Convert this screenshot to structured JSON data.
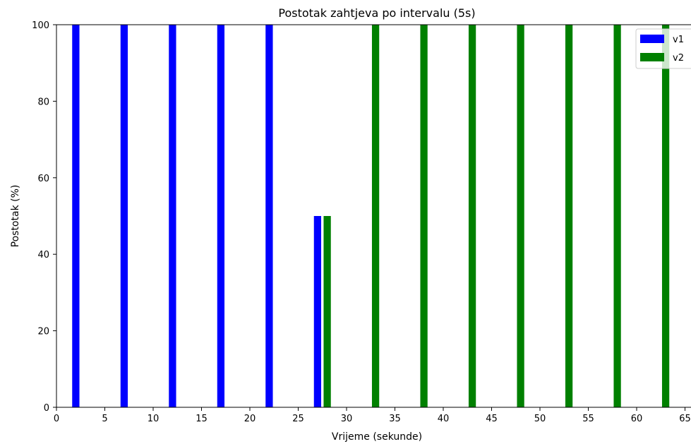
{
  "chart_data": {
    "type": "bar",
    "title": "Postotak zahtjeva po intervalu (5s)",
    "xlabel": "Vrijeme (sekunde)",
    "ylabel": "Postotak (%)",
    "xlim": [
      0,
      66
    ],
    "ylim": [
      0,
      100
    ],
    "xticks": [
      0,
      5,
      10,
      15,
      20,
      25,
      30,
      35,
      40,
      45,
      50,
      55,
      60,
      65
    ],
    "yticks": [
      0,
      20,
      40,
      60,
      80,
      100
    ],
    "grid": false,
    "legend_position": "top-right",
    "series": [
      {
        "name": "v1",
        "color": "#0000ff",
        "points": [
          {
            "x": 2,
            "y": 100
          },
          {
            "x": 7,
            "y": 100
          },
          {
            "x": 12,
            "y": 100
          },
          {
            "x": 17,
            "y": 100
          },
          {
            "x": 22,
            "y": 100
          },
          {
            "x": 27,
            "y": 50
          }
        ]
      },
      {
        "name": "v2",
        "color": "#008000",
        "points": [
          {
            "x": 28,
            "y": 50
          },
          {
            "x": 33,
            "y": 100
          },
          {
            "x": 38,
            "y": 100
          },
          {
            "x": 43,
            "y": 100
          },
          {
            "x": 48,
            "y": 100
          },
          {
            "x": 53,
            "y": 100
          },
          {
            "x": 58,
            "y": 100
          },
          {
            "x": 63,
            "y": 100
          }
        ]
      }
    ]
  }
}
